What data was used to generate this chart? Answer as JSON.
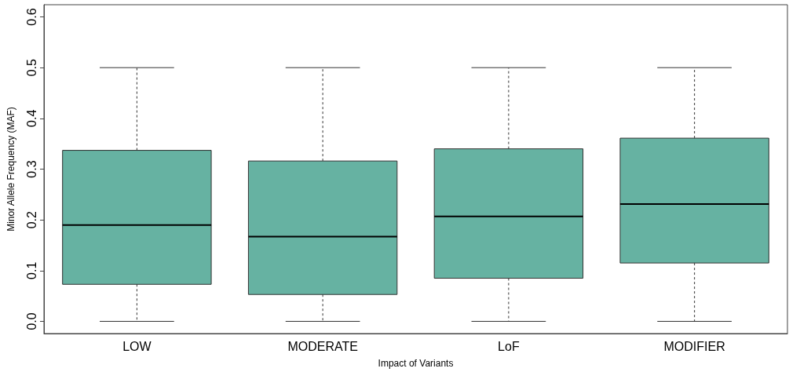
{
  "chart_data": {
    "type": "box",
    "xlabel": "Impact of Variants",
    "ylabel": "Minor Allele Frequency (MAF)",
    "categories": [
      "LOW",
      "MODERATE",
      "LoF",
      "MODIFIER"
    ],
    "color": "#66b2a2",
    "boxes": [
      {
        "low": 0,
        "q1": 0.073,
        "median": 0.19,
        "q3": 0.337,
        "high": 0.5
      },
      {
        "low": 0,
        "q1": 0.053,
        "median": 0.167,
        "q3": 0.316,
        "high": 0.5
      },
      {
        "low": 0,
        "q1": 0.085,
        "median": 0.207,
        "q3": 0.34,
        "high": 0.5
      },
      {
        "low": 0,
        "q1": 0.115,
        "median": 0.231,
        "q3": 0.361,
        "high": 0.5
      }
    ],
    "ylim": [
      -0.024,
      0.624
    ],
    "yticks": [
      {
        "value": 0,
        "label": "0.0"
      },
      0.1,
      0.2,
      0.3,
      0.4,
      0.5,
      0.6
    ],
    "grid": false
  }
}
